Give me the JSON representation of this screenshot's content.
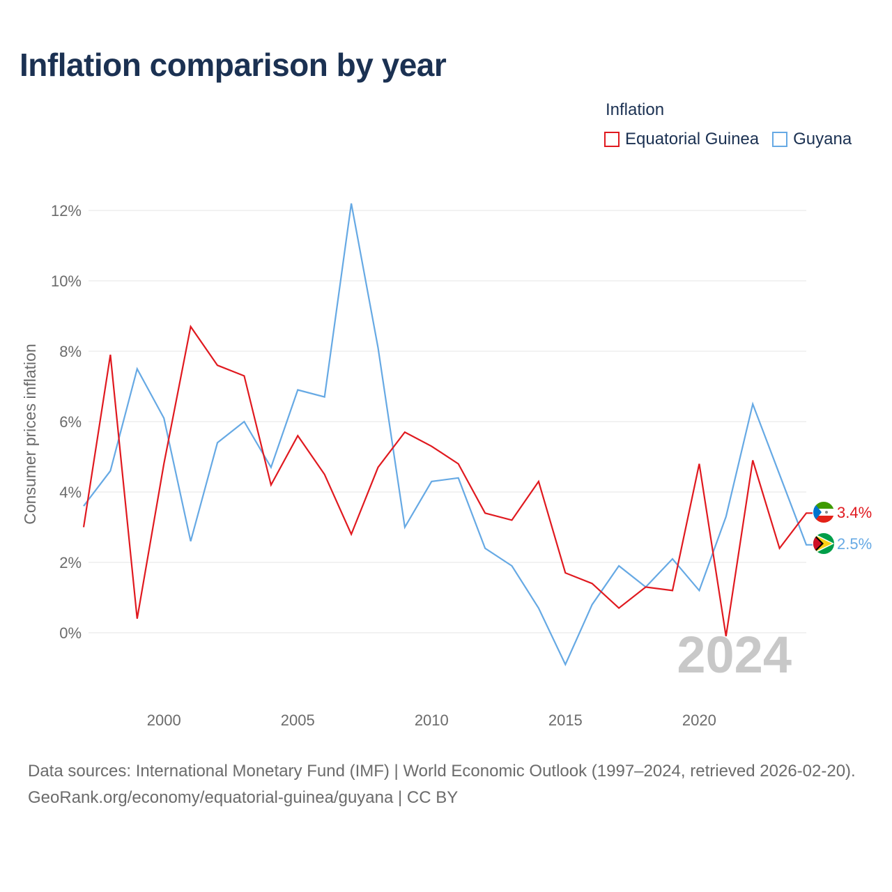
{
  "title": "Inflation comparison by year",
  "legend": {
    "title": "Inflation",
    "items": [
      {
        "label": "Equatorial Guinea",
        "color": "#e0191f"
      },
      {
        "label": "Guyana",
        "color": "#66a9e4"
      }
    ]
  },
  "chart_data": {
    "type": "line",
    "title": "Inflation comparison by year",
    "xlabel": "",
    "ylabel": "Consumer prices inflation",
    "x": [
      1997,
      1998,
      1999,
      2000,
      2001,
      2002,
      2003,
      2004,
      2005,
      2006,
      2007,
      2008,
      2009,
      2010,
      2011,
      2012,
      2013,
      2014,
      2015,
      2016,
      2017,
      2018,
      2019,
      2020,
      2021,
      2022,
      2023,
      2024
    ],
    "series": [
      {
        "name": "Equatorial Guinea",
        "color": "#e0191f",
        "values": [
          3.0,
          7.9,
          0.4,
          4.8,
          8.7,
          7.6,
          7.3,
          4.2,
          5.6,
          4.5,
          2.8,
          4.7,
          5.7,
          5.3,
          4.8,
          3.4,
          3.2,
          4.3,
          1.7,
          1.4,
          0.7,
          1.3,
          1.2,
          4.8,
          -0.1,
          4.9,
          2.4,
          3.4
        ]
      },
      {
        "name": "Guyana",
        "color": "#66a9e4",
        "values": [
          3.6,
          4.6,
          7.5,
          6.1,
          2.6,
          5.4,
          6.0,
          4.7,
          6.9,
          6.7,
          12.2,
          8.1,
          3.0,
          4.3,
          4.4,
          2.4,
          1.9,
          0.7,
          -0.9,
          0.8,
          1.9,
          1.3,
          2.1,
          1.2,
          3.3,
          6.5,
          4.5,
          2.5
        ]
      }
    ],
    "yticks": [
      0,
      2,
      4,
      6,
      8,
      10,
      12
    ],
    "ytick_labels": [
      "0%",
      "2%",
      "4%",
      "6%",
      "8%",
      "10%",
      "12%"
    ],
    "xticks": [
      2000,
      2005,
      2010,
      2015,
      2020
    ],
    "xtick_labels": [
      "2000",
      "2005",
      "2010",
      "2015",
      "2020"
    ],
    "xlim": [
      1997,
      2024
    ],
    "ylim": [
      -2,
      13
    ],
    "grid": true,
    "end_labels": [
      "3.4%",
      "2.5%"
    ],
    "year_watermark": "2024"
  },
  "footer": {
    "sources": "Data sources: International Monetary Fund (IMF) | World Economic Outlook (1997–2024, retrieved 2026-02-20).",
    "credit": "GeoRank.org/economy/equatorial-guinea/guyana | CC BY"
  }
}
